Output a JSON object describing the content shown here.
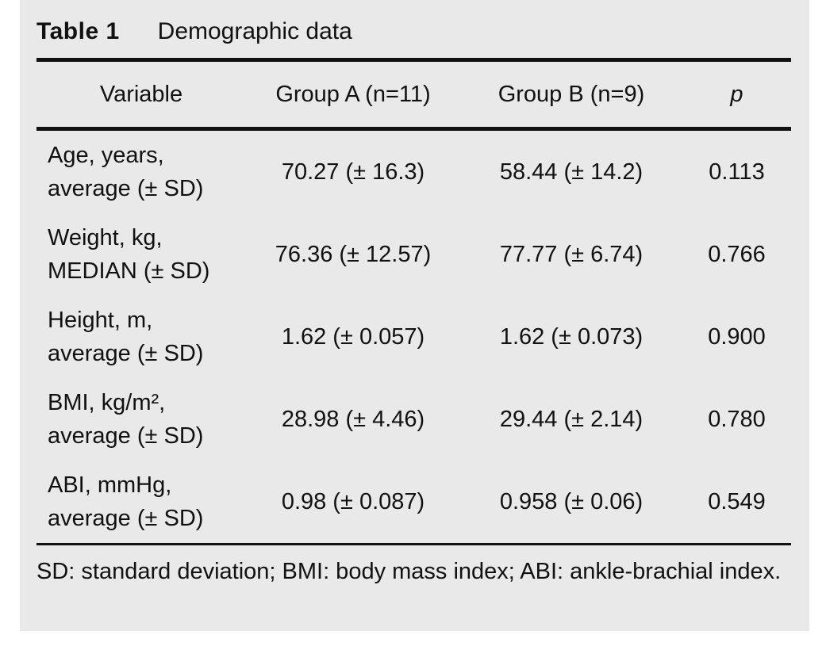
{
  "colors": {
    "background": "#e9e9e9",
    "page": "#ffffff",
    "text": "#111111",
    "rule": "#111111"
  },
  "table": {
    "label": "Table 1",
    "title": "Demographic data",
    "columns": {
      "variable": "Variable",
      "group_a": "Group A (n=11)",
      "group_b": "Group B (n=9)",
      "p": "p"
    },
    "rows": [
      {
        "variable_line1": "Age, years,",
        "variable_line2": "average (± SD)",
        "group_a": "70.27 (± 16.3)",
        "group_b": "58.44 (± 14.2)",
        "p": "0.113"
      },
      {
        "variable_line1": "Weight, kg,",
        "variable_line2": "MEDIAN (± SD)",
        "group_a": "76.36 (± 12.57)",
        "group_b": "77.77 (± 6.74)",
        "p": "0.766"
      },
      {
        "variable_line1": "Height, m,",
        "variable_line2": "average (± SD)",
        "group_a": "1.62 (± 0.057)",
        "group_b": "1.62 (± 0.073)",
        "p": "0.900"
      },
      {
        "variable_line1": "BMI, kg/m²,",
        "variable_line2": "average (± SD)",
        "group_a": "28.98 (± 4.46)",
        "group_b": "29.44 (± 2.14)",
        "p": "0.780"
      },
      {
        "variable_line1": "ABI, mmHg,",
        "variable_line2": "average (± SD)",
        "group_a": "0.98 (± 0.087)",
        "group_b": "0.958 (± 0.06)",
        "p": "0.549"
      }
    ],
    "footnote": "SD: standard deviation; BMI: body mass index; ABI: ankle-brachial index."
  }
}
